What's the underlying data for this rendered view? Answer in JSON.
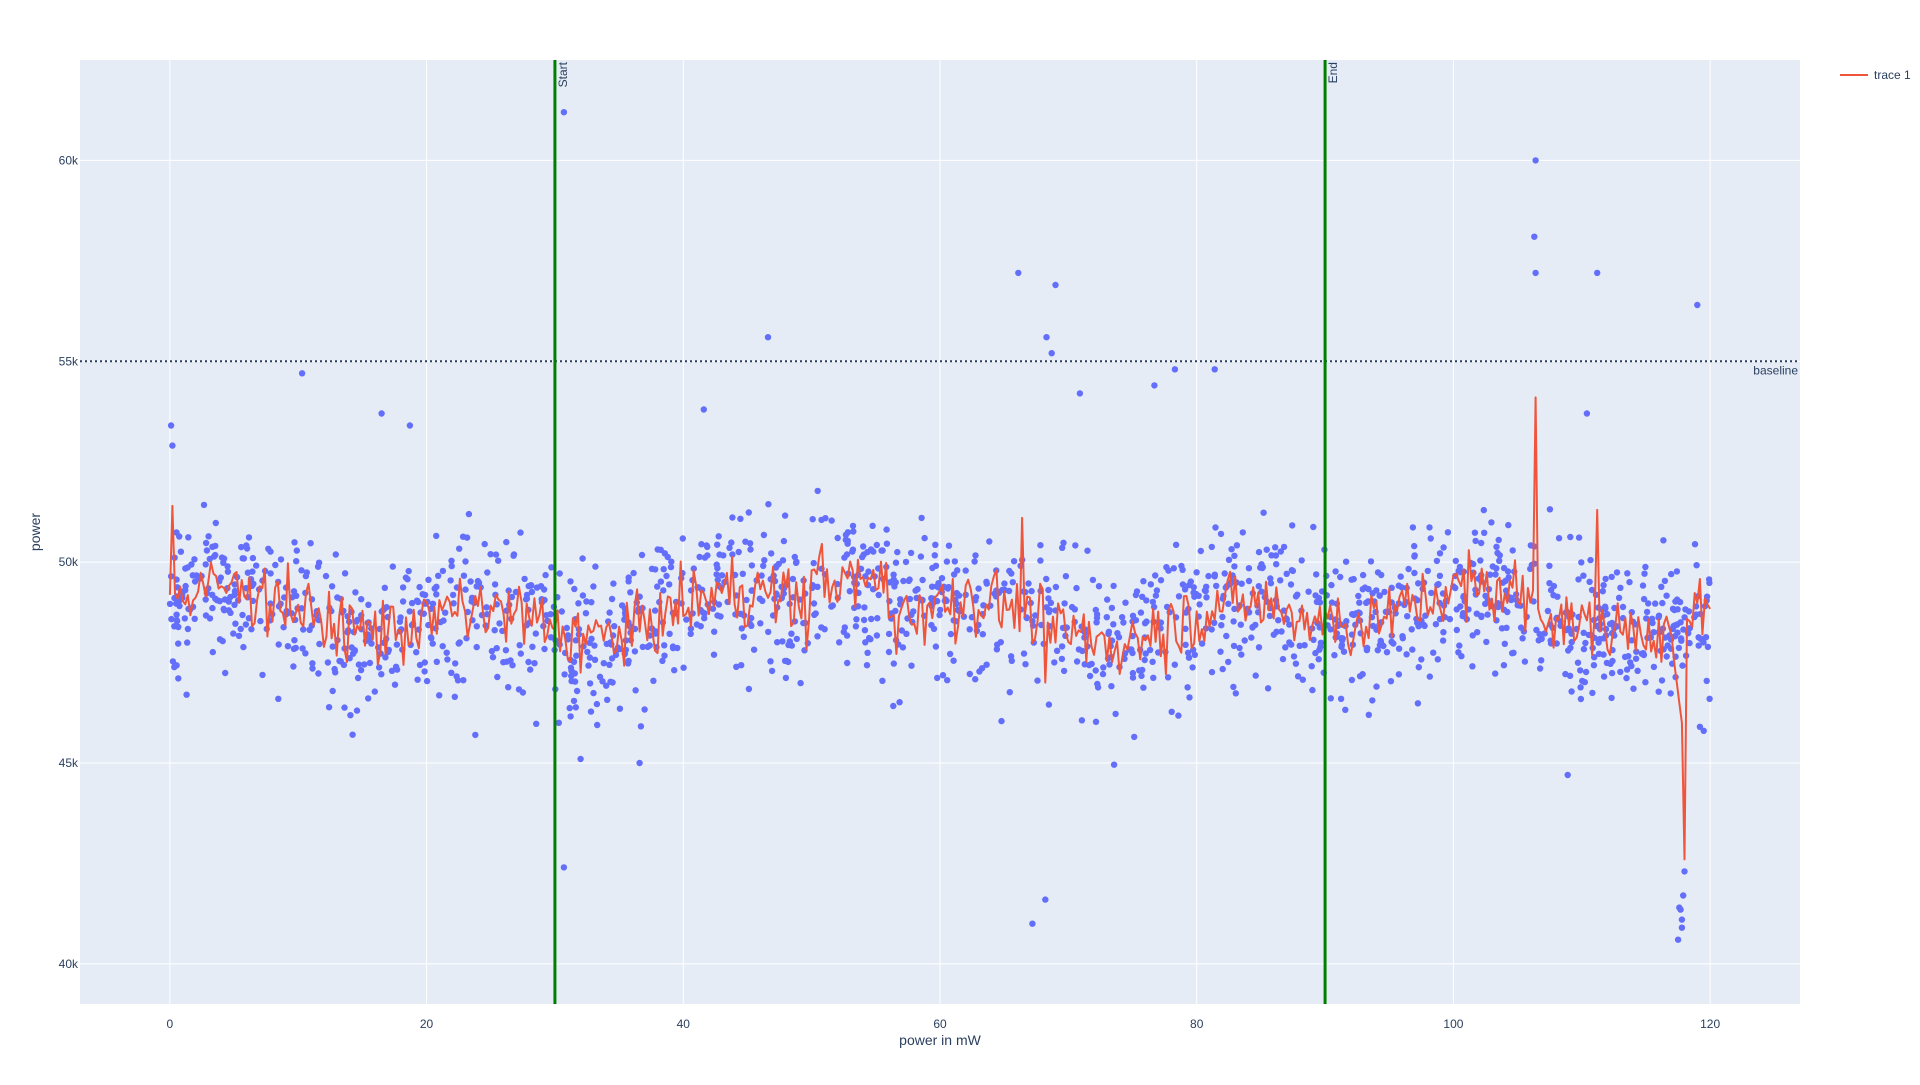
{
  "chart_data": {
    "type": "scatter",
    "xlabel": "power in mW",
    "ylabel": "power",
    "xlim": [
      -7,
      127
    ],
    "ylim": [
      39000,
      62500
    ],
    "x_ticks": [
      0,
      20,
      40,
      60,
      80,
      100,
      120
    ],
    "x_tick_labels": [
      "0",
      "20",
      "40",
      "60",
      "80",
      "100",
      "120"
    ],
    "y_ticks": [
      40000,
      45000,
      50000,
      55000,
      60000
    ],
    "y_tick_labels": [
      "40k",
      "45k",
      "50k",
      "55k",
      "60k"
    ],
    "grid": true,
    "legend_position": "top-right",
    "colors": {
      "plot_bg": "#e5ecf6",
      "grid": "#ffffff",
      "markers": "#636efa",
      "line": "#ef553b",
      "vlines": "#008000",
      "baseline": "#2a3f5f",
      "text": "#2a3f5f"
    },
    "vertical_lines": [
      {
        "x": 30,
        "label": "Start"
      },
      {
        "x": 90,
        "label": "End"
      }
    ],
    "hline": {
      "y": 55000,
      "label": "baseline",
      "style": "dotted"
    },
    "series": [
      {
        "name": "trace 1",
        "kind": "line",
        "show_in_legend": true,
        "mean": 48700,
        "noise": 750,
        "sample_step": 0.2
      },
      {
        "name": "trace 0",
        "kind": "markers",
        "show_in_legend": false,
        "mean": 48800,
        "noise": 1500,
        "n": 1700
      }
    ],
    "line_features": [
      {
        "x": 0.2,
        "y": 51400
      },
      {
        "x": 66.4,
        "y": 51100
      },
      {
        "x": 68.2,
        "y": 47000
      },
      {
        "x": 106.4,
        "y": 54100
      },
      {
        "x": 111.2,
        "y": 51300
      },
      {
        "x": 118.0,
        "y": 42600
      }
    ],
    "outliers": [
      {
        "x": 0.1,
        "y": 53400
      },
      {
        "x": 0.2,
        "y": 52900
      },
      {
        "x": 10.3,
        "y": 54700
      },
      {
        "x": 16.5,
        "y": 53700
      },
      {
        "x": 18.7,
        "y": 53400
      },
      {
        "x": 23.8,
        "y": 45700
      },
      {
        "x": 30.7,
        "y": 61200
      },
      {
        "x": 30.3,
        "y": 46000
      },
      {
        "x": 30.7,
        "y": 42400
      },
      {
        "x": 32.0,
        "y": 45100
      },
      {
        "x": 36.6,
        "y": 45000
      },
      {
        "x": 46.6,
        "y": 55600
      },
      {
        "x": 41.6,
        "y": 53800
      },
      {
        "x": 66.1,
        "y": 57200
      },
      {
        "x": 69.0,
        "y": 56900
      },
      {
        "x": 68.3,
        "y": 55600
      },
      {
        "x": 68.7,
        "y": 55200
      },
      {
        "x": 67.2,
        "y": 41000
      },
      {
        "x": 68.2,
        "y": 41600
      },
      {
        "x": 70.9,
        "y": 54200
      },
      {
        "x": 76.7,
        "y": 54400
      },
      {
        "x": 78.3,
        "y": 54800
      },
      {
        "x": 81.4,
        "y": 54800
      },
      {
        "x": 106.4,
        "y": 60000
      },
      {
        "x": 106.3,
        "y": 58100
      },
      {
        "x": 106.4,
        "y": 57200
      },
      {
        "x": 111.2,
        "y": 57200
      },
      {
        "x": 119.0,
        "y": 56400
      },
      {
        "x": 110.4,
        "y": 53700
      },
      {
        "x": 108.9,
        "y": 44700
      },
      {
        "x": 117.5,
        "y": 40600
      },
      {
        "x": 117.8,
        "y": 40900
      },
      {
        "x": 117.8,
        "y": 41100
      },
      {
        "x": 117.6,
        "y": 41400
      },
      {
        "x": 117.9,
        "y": 41700
      },
      {
        "x": 118.0,
        "y": 42300
      },
      {
        "x": 117.7,
        "y": 41350
      },
      {
        "x": 119.2,
        "y": 45900
      },
      {
        "x": 119.5,
        "y": 45800
      }
    ]
  }
}
